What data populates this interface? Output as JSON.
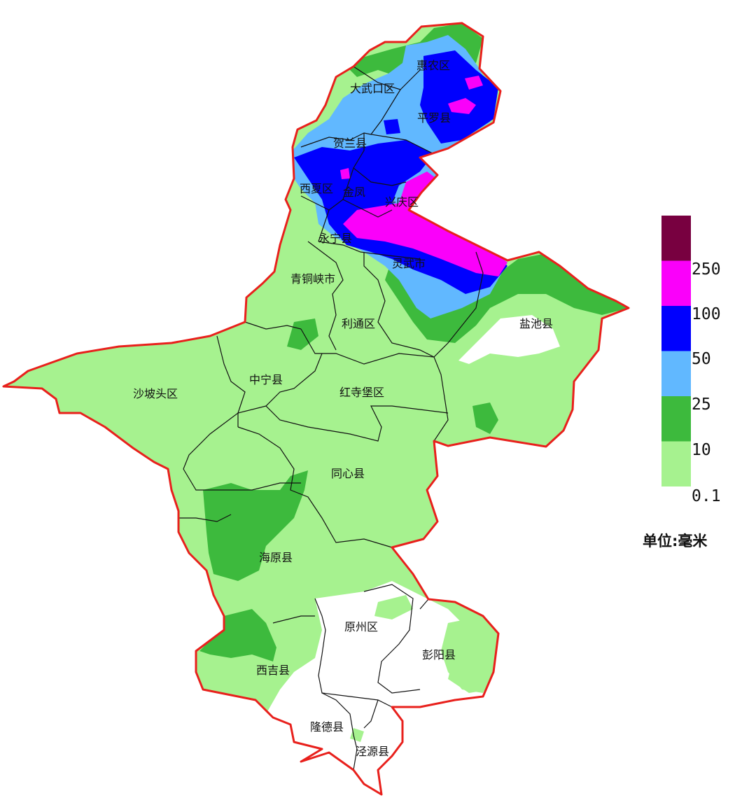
{
  "map": {
    "colors": {
      "background": "#ffffff",
      "province_border": "#e8201c",
      "county_border": "#111111",
      "bin_0_1_10": "#a6f28f",
      "bin_10_25": "#3dba3d",
      "bin_25_50": "#61b8ff",
      "bin_50_100": "#0000fe",
      "bin_100_250": "#fa00fa",
      "bin_250_plus": "#780040"
    },
    "counties": [
      {
        "id": "huinong",
        "name": "惠农区"
      },
      {
        "id": "dawukou",
        "name": "大武口区"
      },
      {
        "id": "pingluo",
        "name": "平罗县"
      },
      {
        "id": "helan",
        "name": "贺兰县"
      },
      {
        "id": "xixia",
        "name": "西夏区"
      },
      {
        "id": "jinfeng",
        "name": "金凤"
      },
      {
        "id": "xingqing",
        "name": "兴庆区"
      },
      {
        "id": "yongning",
        "name": "永宁县"
      },
      {
        "id": "lingwu",
        "name": "灵武市"
      },
      {
        "id": "qingtongxia",
        "name": "青铜峡市"
      },
      {
        "id": "litong",
        "name": "利通区"
      },
      {
        "id": "yanchi",
        "name": "盐池县"
      },
      {
        "id": "zhongning",
        "name": "中宁县"
      },
      {
        "id": "shapotou",
        "name": "沙坡头区"
      },
      {
        "id": "hongsibao",
        "name": "红寺堡区"
      },
      {
        "id": "tongxin",
        "name": "同心县"
      },
      {
        "id": "haiyuan",
        "name": "海原县"
      },
      {
        "id": "yuanzhou",
        "name": "原州区"
      },
      {
        "id": "pengyang",
        "name": "彭阳县"
      },
      {
        "id": "xiji",
        "name": "西吉县"
      },
      {
        "id": "longde",
        "name": "隆德县"
      },
      {
        "id": "jingyuan",
        "name": "泾源县"
      }
    ]
  },
  "legend": {
    "bins": [
      {
        "key": "bin_250_plus",
        "color": "#780040"
      },
      {
        "key": "bin_100_250",
        "color": "#fa00fa"
      },
      {
        "key": "bin_50_100",
        "color": "#0000fe"
      },
      {
        "key": "bin_25_50",
        "color": "#61b8ff"
      },
      {
        "key": "bin_10_25",
        "color": "#3dba3d"
      },
      {
        "key": "bin_0_1_10",
        "color": "#a6f28f"
      }
    ],
    "ticks": [
      "250",
      "100",
      "50",
      "25",
      "10",
      "0.1"
    ],
    "unit": "单位:毫米"
  }
}
